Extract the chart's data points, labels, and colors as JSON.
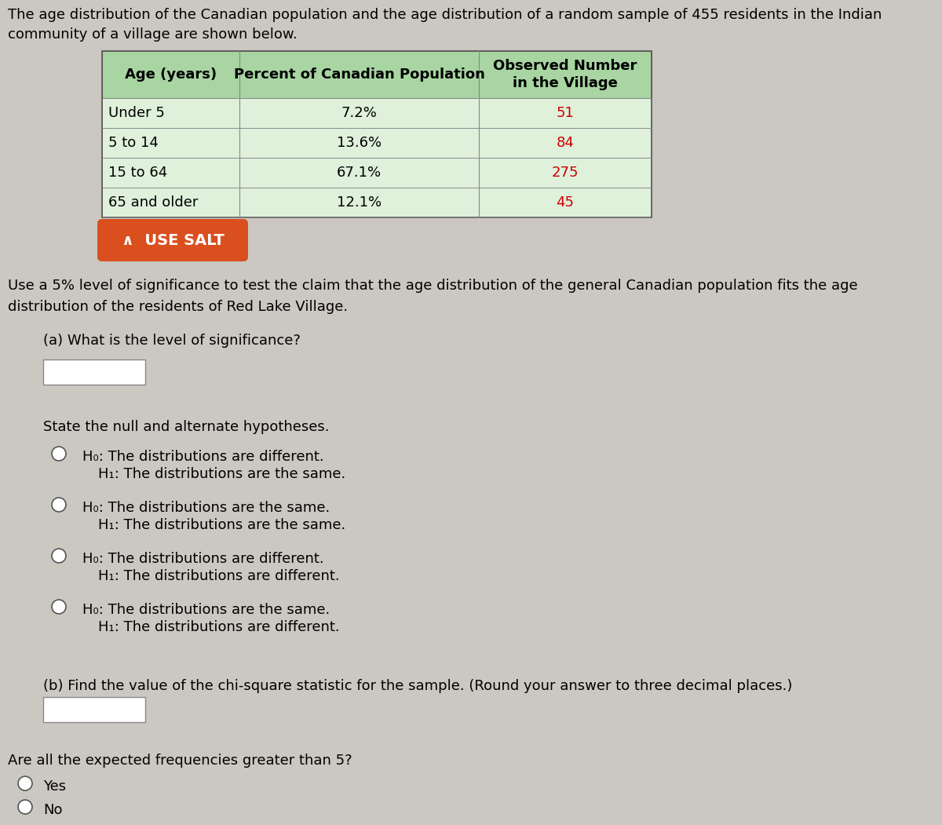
{
  "title_line1": "The age distribution of the Canadian population and the age distribution of a random sample of 455 residents in the Indian",
  "title_line2": "community of a village are shown below.",
  "table_header": [
    "Age (years)",
    "Percent of Canadian Population",
    "Observed Number\nin the Village"
  ],
  "table_rows": [
    [
      "Under 5",
      "7.2%",
      "51"
    ],
    [
      "5 to 14",
      "13.6%",
      "84"
    ],
    [
      "15 to 64",
      "67.1%",
      "275"
    ],
    [
      "65 and older",
      "12.1%",
      "45"
    ]
  ],
  "use_salt_text": "∧  USE SALT",
  "significance_line1": "Use a 5% level of significance to test the claim that the age distribution of the general Canadian population fits the age",
  "significance_line2": "distribution of the residents of Red Lake Village.",
  "part_a_label": "(a) What is the level of significance?",
  "state_hyp_text": "State the null and alternate hypotheses.",
  "hypotheses": [
    {
      "h0": "H₀: The distributions are different.",
      "h1": "H₁: The distributions are the same."
    },
    {
      "h0": "H₀: The distributions are the same.",
      "h1": "H₁: The distributions are the same."
    },
    {
      "h0": "H₀: The distributions are different.",
      "h1": "H₁: The distributions are different."
    },
    {
      "h0": "H₀: The distributions are the same.",
      "h1": "H₁: The distributions are different."
    }
  ],
  "part_b_label": "(b) Find the value of the chi-square statistic for the sample. (Round your answer to three decimal places.)",
  "expected_freq_text": "Are all the expected frequencies greater than 5?",
  "yes_text": "Yes",
  "no_text": "No",
  "bg_color": "#cbc8c2",
  "table_header_bg": "#a8d5a2",
  "table_row_bg": "#dff0db",
  "use_salt_bg": "#d94f1e",
  "use_salt_text_color": "#ffffff",
  "observed_color": "#cc0000",
  "font_size_title": 13,
  "font_size_body": 13,
  "font_size_table": 13,
  "font_size_salt": 13
}
